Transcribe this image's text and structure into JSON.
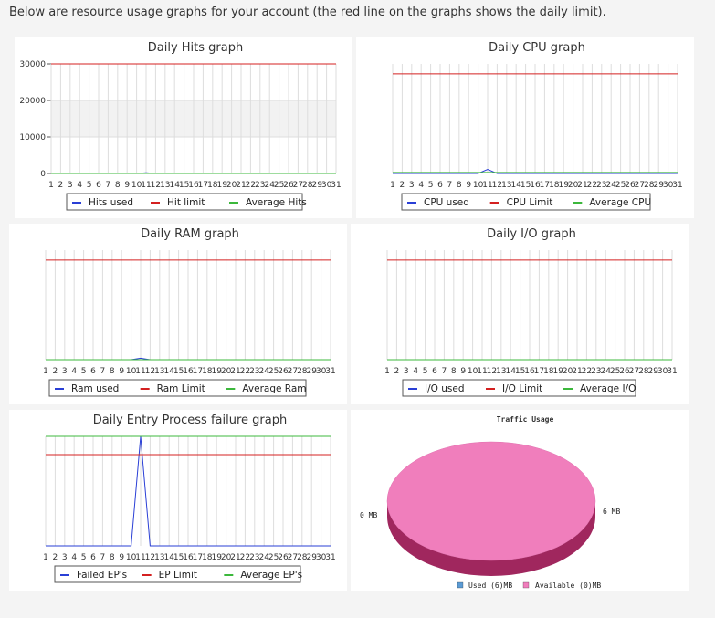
{
  "intro_text": "Below are resource usage graphs for your account (the red line on the graphs shows the daily limit).",
  "colors": {
    "used": "#2a3fd6",
    "limit": "#d42020",
    "average": "#3cb83c",
    "grid": "#dddddd",
    "pie_main": "#f07ebc",
    "pie_side": "#a0275e"
  },
  "days": [
    1,
    2,
    3,
    4,
    5,
    6,
    7,
    8,
    9,
    10,
    11,
    12,
    13,
    14,
    15,
    16,
    17,
    18,
    19,
    20,
    21,
    22,
    23,
    24,
    25,
    26,
    27,
    28,
    29,
    30,
    31
  ],
  "graphs": [
    {
      "id": "hits",
      "title": "Daily Hits graph",
      "y_ticks": [
        "30000",
        "20000",
        "10000",
        "0"
      ],
      "legend": [
        "Hits used",
        "Hit limit",
        "Average Hits"
      ],
      "chart_data": {
        "type": "line",
        "title": "Daily Hits graph",
        "ylim": [
          0,
          30000
        ],
        "limit": 30000,
        "series": [
          {
            "name": "Hits used",
            "values": [
              0,
              0,
              0,
              0,
              0,
              0,
              0,
              0,
              0,
              0,
              200,
              0,
              0,
              0,
              0,
              0,
              0,
              0,
              0,
              0,
              0,
              0,
              0,
              0,
              0,
              0,
              0,
              0,
              0,
              0,
              0
            ]
          },
          {
            "name": "Hit limit",
            "values": [
              30000,
              30000,
              30000,
              30000,
              30000,
              30000,
              30000,
              30000,
              30000,
              30000,
              30000,
              30000,
              30000,
              30000,
              30000,
              30000,
              30000,
              30000,
              30000,
              30000,
              30000,
              30000,
              30000,
              30000,
              30000,
              30000,
              30000,
              30000,
              30000,
              30000,
              30000
            ]
          },
          {
            "name": "Average Hits",
            "values": [
              0,
              0,
              0,
              0,
              0,
              0,
              0,
              0,
              0,
              0,
              0,
              0,
              0,
              0,
              0,
              0,
              0,
              0,
              0,
              0,
              0,
              0,
              0,
              0,
              0,
              0,
              0,
              0,
              0,
              0,
              0
            ]
          }
        ]
      }
    },
    {
      "id": "cpu",
      "title": "Daily CPU graph",
      "y_ticks": [],
      "legend": [
        "CPU used",
        "CPU Limit",
        "Average CPU"
      ],
      "chart_data": {
        "type": "line",
        "title": "Daily CPU graph",
        "ylim": [
          0,
          110
        ],
        "limit": 100,
        "series": [
          {
            "name": "CPU used",
            "values": [
              0,
              0,
              0,
              0,
              0,
              0,
              0,
              0,
              0,
              0,
              4,
              0,
              0,
              0,
              0,
              0,
              0,
              0,
              0,
              0,
              0,
              0,
              0,
              0,
              0,
              0,
              0,
              0,
              0,
              0,
              0
            ]
          },
          {
            "name": "CPU Limit",
            "values": [
              100,
              100,
              100,
              100,
              100,
              100,
              100,
              100,
              100,
              100,
              100,
              100,
              100,
              100,
              100,
              100,
              100,
              100,
              100,
              100,
              100,
              100,
              100,
              100,
              100,
              100,
              100,
              100,
              100,
              100,
              100
            ]
          },
          {
            "name": "Average CPU",
            "values": [
              1,
              1,
              1,
              1,
              1,
              1,
              1,
              1,
              1,
              1,
              1,
              1,
              1,
              1,
              1,
              1,
              1,
              1,
              1,
              1,
              1,
              1,
              1,
              1,
              1,
              1,
              1,
              1,
              1,
              1,
              1
            ]
          }
        ]
      }
    },
    {
      "id": "ram",
      "title": "Daily RAM graph",
      "y_ticks": [],
      "legend": [
        "Ram used",
        "Ram Limit",
        "Average Ram"
      ],
      "chart_data": {
        "type": "line",
        "title": "Daily RAM graph",
        "ylim": [
          0,
          110
        ],
        "limit": 100,
        "series": [
          {
            "name": "Ram used",
            "values": [
              0,
              0,
              0,
              0,
              0,
              0,
              0,
              0,
              0,
              0,
              1.5,
              0,
              0,
              0,
              0,
              0,
              0,
              0,
              0,
              0,
              0,
              0,
              0,
              0,
              0,
              0,
              0,
              0,
              0,
              0,
              0
            ]
          },
          {
            "name": "Ram Limit",
            "values": [
              100,
              100,
              100,
              100,
              100,
              100,
              100,
              100,
              100,
              100,
              100,
              100,
              100,
              100,
              100,
              100,
              100,
              100,
              100,
              100,
              100,
              100,
              100,
              100,
              100,
              100,
              100,
              100,
              100,
              100,
              100
            ]
          },
          {
            "name": "Average Ram",
            "values": [
              0,
              0,
              0,
              0,
              0,
              0,
              0,
              0,
              0,
              0,
              0,
              0,
              0,
              0,
              0,
              0,
              0,
              0,
              0,
              0,
              0,
              0,
              0,
              0,
              0,
              0,
              0,
              0,
              0,
              0,
              0
            ]
          }
        ]
      }
    },
    {
      "id": "io",
      "title": "Daily I/O graph",
      "y_ticks": [],
      "legend": [
        "I/O used",
        "I/O Limit",
        "Average I/O"
      ],
      "chart_data": {
        "type": "line",
        "title": "Daily I/O graph",
        "ylim": [
          0,
          110
        ],
        "limit": 100,
        "series": [
          {
            "name": "I/O used",
            "values": [
              0,
              0,
              0,
              0,
              0,
              0,
              0,
              0,
              0,
              0,
              0,
              0,
              0,
              0,
              0,
              0,
              0,
              0,
              0,
              0,
              0,
              0,
              0,
              0,
              0,
              0,
              0,
              0,
              0,
              0,
              0
            ]
          },
          {
            "name": "I/O Limit",
            "values": [
              100,
              100,
              100,
              100,
              100,
              100,
              100,
              100,
              100,
              100,
              100,
              100,
              100,
              100,
              100,
              100,
              100,
              100,
              100,
              100,
              100,
              100,
              100,
              100,
              100,
              100,
              100,
              100,
              100,
              100,
              100
            ]
          },
          {
            "name": "Average I/O",
            "values": [
              0,
              0,
              0,
              0,
              0,
              0,
              0,
              0,
              0,
              0,
              0,
              0,
              0,
              0,
              0,
              0,
              0,
              0,
              0,
              0,
              0,
              0,
              0,
              0,
              0,
              0,
              0,
              0,
              0,
              0,
              0
            ]
          }
        ]
      }
    },
    {
      "id": "ep",
      "title": "Daily Entry Process failure graph",
      "y_ticks": [],
      "legend": [
        "Failed EP's",
        "EP Limit",
        "Average EP's"
      ],
      "chart_data": {
        "type": "line",
        "title": "Daily Entry Process failure graph",
        "ylim": [
          0,
          120
        ],
        "limit": 100,
        "series": [
          {
            "name": "Failed EP's",
            "values": [
              0,
              0,
              0,
              0,
              0,
              0,
              0,
              0,
              0,
              0,
              120,
              0,
              0,
              0,
              0,
              0,
              0,
              0,
              0,
              0,
              0,
              0,
              0,
              0,
              0,
              0,
              0,
              0,
              0,
              0,
              0
            ]
          },
          {
            "name": "EP Limit",
            "values": [
              100,
              100,
              100,
              100,
              100,
              100,
              100,
              100,
              100,
              100,
              100,
              100,
              100,
              100,
              100,
              100,
              100,
              100,
              100,
              100,
              100,
              100,
              100,
              100,
              100,
              100,
              100,
              100,
              100,
              100,
              100
            ]
          },
          {
            "name": "Average EP's",
            "values": [
              120,
              120,
              120,
              120,
              120,
              120,
              120,
              120,
              120,
              120,
              120,
              120,
              120,
              120,
              120,
              120,
              120,
              120,
              120,
              120,
              120,
              120,
              120,
              120,
              120,
              120,
              120,
              120,
              120,
              120,
              120
            ]
          }
        ]
      }
    }
  ],
  "traffic": {
    "title": "Traffic Usage",
    "left_label": "0 MB",
    "right_label": "6 MB",
    "legend_used": "Used (6)MB",
    "legend_available": "Available (0)MB",
    "chart_data": {
      "type": "pie",
      "title": "Traffic Usage",
      "categories": [
        "Used (6)MB",
        "Available (0)MB"
      ],
      "values": [
        6,
        0
      ],
      "colors": [
        "#5b9bd5",
        "#f07ebc"
      ]
    }
  }
}
